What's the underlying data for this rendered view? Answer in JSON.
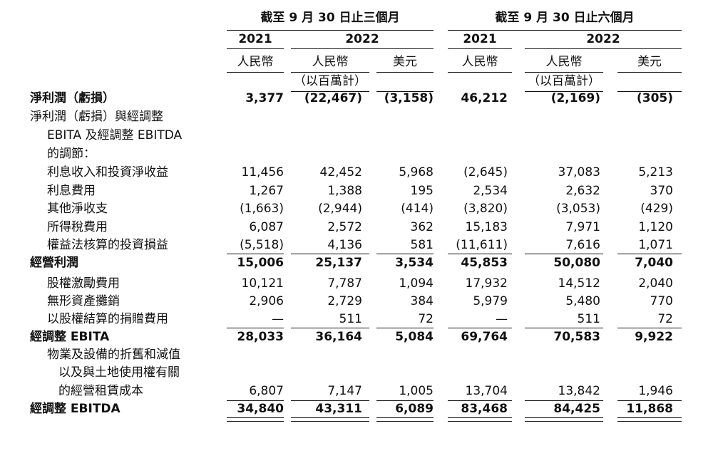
{
  "headers": {
    "period_three": "截至 9 月 30 日止三個月",
    "period_six": "截至 9 月 30 日止六個月",
    "years": [
      "2021",
      "2022",
      "2021",
      "2022"
    ],
    "currencies": [
      "人民幣",
      "人民幣",
      "美元",
      "人民幣",
      "人民幣",
      "美元"
    ],
    "unit_note_three": "（以百萬計）",
    "unit_note_six": "（以百萬計）"
  },
  "rows": [
    {
      "label": "淨利潤（虧損）",
      "bold": true,
      "values": [
        "3,377",
        "(22,467)",
        "(3,158)",
        "46,212",
        "(2,169)",
        "(305)"
      ]
    },
    {
      "label": "淨利潤（虧損）與經調整",
      "bold": false,
      "values": []
    },
    {
      "label": "EBITA 及經調整 EBITDA",
      "bold": false,
      "values": []
    },
    {
      "label": "的調節：",
      "bold": false,
      "values": []
    },
    {
      "label": "利息收入和投資淨收益",
      "bold": false,
      "values": [
        "11,456",
        "42,452",
        "5,968",
        "(2,645)",
        "37,083",
        "5,213"
      ]
    },
    {
      "label": "利息費用",
      "bold": false,
      "values": [
        "1,267",
        "1,388",
        "195",
        "2,534",
        "2,632",
        "370"
      ]
    },
    {
      "label": "其他淨收支",
      "bold": false,
      "values": [
        "(1,663)",
        "(2,944)",
        "(414)",
        "(3,820)",
        "(3,053)",
        "(429)"
      ]
    },
    {
      "label": "所得稅費用",
      "bold": false,
      "values": [
        "6,087",
        "2,572",
        "362",
        "15,183",
        "7,971",
        "1,120"
      ]
    },
    {
      "label": "權益法核算的投資損益",
      "bold": false,
      "values": [
        "(5,518)",
        "4,136",
        "581",
        "(11,611)",
        "7,616",
        "1,071"
      ]
    },
    {
      "label": "經營利潤",
      "bold": true,
      "values": [
        "15,006",
        "25,137",
        "3,534",
        "45,853",
        "50,080",
        "7,040"
      ]
    },
    {
      "label": "股權激勵費用",
      "bold": false,
      "values": [
        "10,121",
        "7,787",
        "1,094",
        "17,932",
        "14,512",
        "2,040"
      ]
    },
    {
      "label": "無形資產攤銷",
      "bold": false,
      "values": [
        "2,906",
        "2,729",
        "384",
        "5,979",
        "5,480",
        "770"
      ]
    },
    {
      "label": "以股權結算的捐贈費用",
      "bold": false,
      "values": [
        "—",
        "511",
        "72",
        "—",
        "511",
        "72"
      ]
    },
    {
      "label": "經調整 EBITA",
      "bold": true,
      "values": [
        "28,033",
        "36,164",
        "5,084",
        "69,764",
        "70,583",
        "9,922"
      ]
    },
    {
      "label": "物業及設備的折舊和減值",
      "bold": false,
      "values": []
    },
    {
      "label": "以及與土地使用權有關",
      "bold": false,
      "values": []
    },
    {
      "label": "的經營租賃成本",
      "bold": false,
      "values": [
        "6,807",
        "7,147",
        "1,005",
        "13,704",
        "13,842",
        "1,946"
      ]
    },
    {
      "label": "經調整 EBITDA",
      "bold": true,
      "values": [
        "34,840",
        "43,311",
        "6,089",
        "83,468",
        "84,425",
        "11,868"
      ]
    }
  ]
}
